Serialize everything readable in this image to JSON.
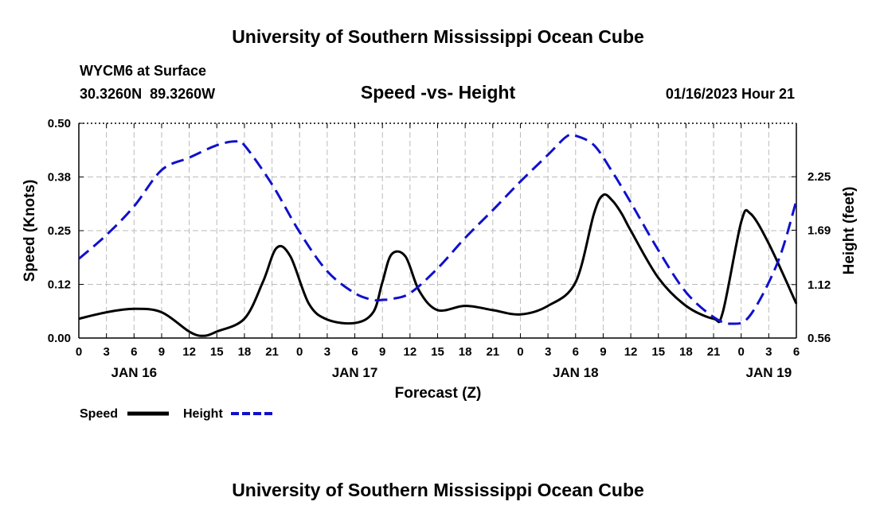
{
  "header": {
    "title": "University of Southern Mississippi Ocean Cube",
    "station": "WYCM6 at Surface",
    "coords": "30.3260N  89.3260W",
    "chart_title": "Speed -vs- Height",
    "datetime": "01/16/2023 Hour 21",
    "footer_title": "University of Southern Mississippi Ocean Cube"
  },
  "colors": {
    "speed": "#000000",
    "height": "#1010cc",
    "grid": "#bbbbbb"
  },
  "chart_data": {
    "type": "line",
    "title": "Speed -vs- Height",
    "xlabel": "Forecast (Z)",
    "ylabel": "Speed (Knots)",
    "y2label": "Height (feet)",
    "xlim": [
      0,
      78
    ],
    "ylim": [
      0,
      0.5
    ],
    "y2lim": [
      0.56,
      2.81
    ],
    "yticks": [
      "0.00",
      "0.12",
      "0.25",
      "0.38",
      "0.50"
    ],
    "y2ticks": [
      "0.56",
      "1.12",
      "1.69",
      "2.25"
    ],
    "xticks": [
      "0",
      "3",
      "6",
      "9",
      "12",
      "15",
      "18",
      "21",
      "0",
      "3",
      "6",
      "9",
      "12",
      "15",
      "18",
      "21",
      "0",
      "3",
      "6",
      "9",
      "12",
      "15",
      "18",
      "21",
      "0",
      "3",
      "6"
    ],
    "date_labels": [
      {
        "label": "JAN 16",
        "x": 6
      },
      {
        "label": "JAN 17",
        "x": 30
      },
      {
        "label": "JAN 18",
        "x": 54
      },
      {
        "label": "JAN 19",
        "x": 75
      }
    ],
    "legend": [
      "Speed",
      "Height"
    ],
    "series": [
      {
        "name": "Speed",
        "axis": "left",
        "style": "solid",
        "x": [
          0,
          3,
          6,
          9,
          12,
          13.5,
          15,
          18,
          20,
          21.5,
          23,
          25,
          27,
          30,
          32,
          33,
          34,
          35.5,
          37,
          39,
          42,
          45,
          48,
          51,
          54,
          56,
          57,
          58,
          59,
          60,
          63,
          66,
          69,
          70,
          72,
          73,
          75,
          78
        ],
        "y": [
          0.045,
          0.06,
          0.068,
          0.06,
          0.015,
          0.005,
          0.015,
          0.045,
          0.13,
          0.21,
          0.19,
          0.08,
          0.043,
          0.035,
          0.06,
          0.13,
          0.195,
          0.19,
          0.11,
          0.065,
          0.075,
          0.065,
          0.055,
          0.075,
          0.13,
          0.29,
          0.333,
          0.32,
          0.29,
          0.25,
          0.14,
          0.075,
          0.045,
          0.06,
          0.27,
          0.29,
          0.22,
          0.08
        ]
      },
      {
        "name": "Height",
        "axis": "right",
        "style": "dashed",
        "x": [
          0,
          3,
          6,
          9,
          12,
          15,
          17,
          18,
          21,
          24,
          27,
          30,
          32,
          33,
          34,
          36,
          39,
          42,
          45,
          48,
          51,
          53,
          54,
          56,
          58,
          60,
          63,
          66,
          69,
          71,
          73,
          76,
          78
        ],
        "y": [
          1.39,
          1.64,
          1.94,
          2.32,
          2.45,
          2.58,
          2.62,
          2.58,
          2.17,
          1.67,
          1.26,
          1.03,
          0.96,
          0.96,
          0.97,
          1.03,
          1.29,
          1.61,
          1.9,
          2.2,
          2.48,
          2.67,
          2.68,
          2.58,
          2.3,
          1.98,
          1.48,
          1.04,
          0.78,
          0.71,
          0.8,
          1.36,
          2.0
        ]
      }
    ]
  }
}
